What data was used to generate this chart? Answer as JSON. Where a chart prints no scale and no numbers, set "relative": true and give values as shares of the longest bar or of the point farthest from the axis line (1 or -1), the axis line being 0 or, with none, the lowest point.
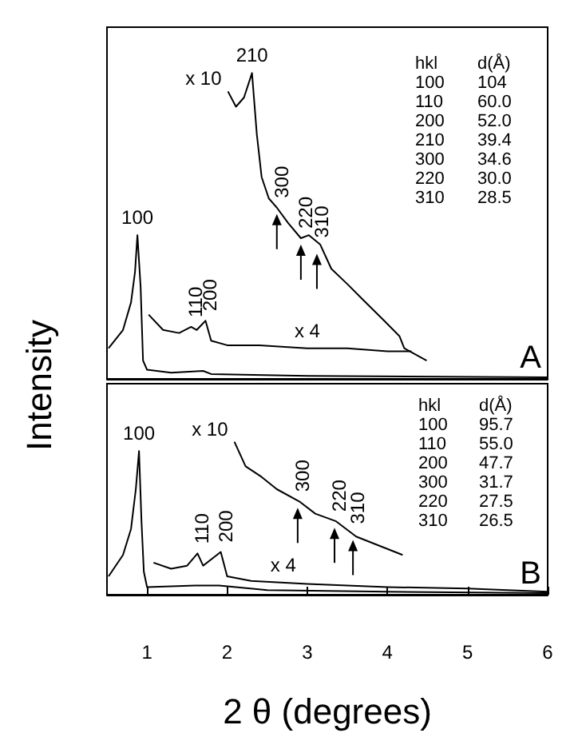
{
  "chart_data": [
    {
      "type": "line",
      "title": "A",
      "ylabel": "Intensity",
      "relative": true,
      "xlim": [
        0.5,
        6
      ],
      "tick_labels": false,
      "series": [
        {
          "color": "#000000",
          "x": [
            0.52,
            0.7,
            0.8,
            0.85,
            0.88,
            0.92,
            0.95,
            1.0,
            1.3,
            1.7,
            1.8,
            3.0,
            6.0
          ],
          "values": [
            0.1,
            0.16,
            0.25,
            0.35,
            0.47,
            0.3,
            0.06,
            0.03,
            0.02,
            0.026,
            0.016,
            0.01,
            0.005
          ]
        },
        {
          "color": "#000000",
          "x": [
            1.02,
            1.2,
            1.4,
            1.55,
            1.62,
            1.73,
            1.8,
            2.0,
            2.4,
            3.0,
            3.5,
            4.0,
            4.3
          ],
          "values": [
            0.21,
            0.16,
            0.15,
            0.17,
            0.16,
            0.19,
            0.125,
            0.11,
            0.11,
            0.1,
            0.1,
            0.09,
            0.09
          ]
        },
        {
          "color": "#000000",
          "x": [
            2.01,
            2.11,
            2.21,
            2.31,
            2.37,
            2.43,
            2.52,
            2.62,
            2.76,
            2.92,
            3.02,
            3.16,
            3.3,
            3.5,
            3.69,
            3.96,
            4.15,
            4.21,
            4.49
          ],
          "values": [
            0.94,
            0.89,
            0.92,
            1.0,
            0.8,
            0.66,
            0.59,
            0.56,
            0.51,
            0.46,
            0.47,
            0.44,
            0.36,
            0.31,
            0.26,
            0.19,
            0.14,
            0.1,
            0.06
          ]
        }
      ],
      "annotations": [
        {
          "text": "100",
          "x": 0.88,
          "y": 0.47
        },
        {
          "text": "110",
          "x": 1.55,
          "y": 0.17
        },
        {
          "text": "200",
          "x": 1.73,
          "y": 0.19
        },
        {
          "text": "210",
          "x": 2.31,
          "y": 1.0
        },
        {
          "text": "300",
          "x": 2.62,
          "y": 0.56
        },
        {
          "text": "220",
          "x": 2.92,
          "y": 0.46
        },
        {
          "text": "310",
          "x": 3.12,
          "y": 0.43
        },
        {
          "text": "x 10",
          "x": 2.01,
          "y": 0.94
        },
        {
          "text": "x 4",
          "x": 3.0,
          "y": 0.1
        },
        "hkl d(Å)",
        "100 104",
        "110 60.0",
        "200 52.0",
        "210 39.4",
        "300 34.6",
        "220 30.0",
        "310 28.5"
      ]
    },
    {
      "type": "line",
      "title": "B",
      "xlabel": "2 θ (degrees)",
      "relative": true,
      "xlim": [
        0.5,
        6
      ],
      "xticks": [
        1,
        2,
        3,
        4,
        5,
        6
      ],
      "tick_labels": "x",
      "series": [
        {
          "color": "#000000",
          "x": [
            0.52,
            0.7,
            0.8,
            0.86,
            0.9,
            0.93,
            0.96,
            1.0,
            1.6,
            1.9,
            2.5,
            4.0,
            6.0
          ],
          "values": [
            0.12,
            0.26,
            0.43,
            0.69,
            0.94,
            0.49,
            0.15,
            0.05,
            0.06,
            0.06,
            0.03,
            0.02,
            0.01
          ]
        },
        {
          "color": "#000000",
          "x": [
            1.08,
            1.3,
            1.5,
            1.63,
            1.7,
            1.92,
            2.0,
            2.3,
            3.0,
            4.0,
            5.0,
            6.0
          ],
          "values": [
            0.21,
            0.17,
            0.19,
            0.27,
            0.19,
            0.28,
            0.12,
            0.09,
            0.07,
            0.05,
            0.04,
            0.02
          ]
        },
        {
          "color": "#000000",
          "x": [
            2.09,
            2.23,
            2.43,
            2.62,
            2.9,
            3.1,
            3.36,
            3.61,
            3.95,
            4.19
          ],
          "values": [
            1.0,
            0.84,
            0.77,
            0.69,
            0.61,
            0.53,
            0.48,
            0.38,
            0.31,
            0.26
          ]
        }
      ],
      "annotations": [
        {
          "text": "100",
          "x": 0.9,
          "y": 0.94
        },
        {
          "text": "110",
          "x": 1.63,
          "y": 0.27
        },
        {
          "text": "200",
          "x": 1.92,
          "y": 0.28
        },
        {
          "text": "300",
          "x": 2.88,
          "y": 0.61
        },
        {
          "text": "220",
          "x": 3.34,
          "y": 0.48
        },
        {
          "text": "310",
          "x": 3.57,
          "y": 0.4
        },
        {
          "text": "x 10",
          "x": 2.09,
          "y": 1.0
        },
        {
          "text": "x 4",
          "x": 2.7,
          "y": 0.08
        },
        "hkl d(Å)",
        "100 95.7",
        "110 55.0",
        "200 47.7",
        "300 31.7",
        "220 27.5",
        "310 26.5"
      ]
    }
  ]
}
